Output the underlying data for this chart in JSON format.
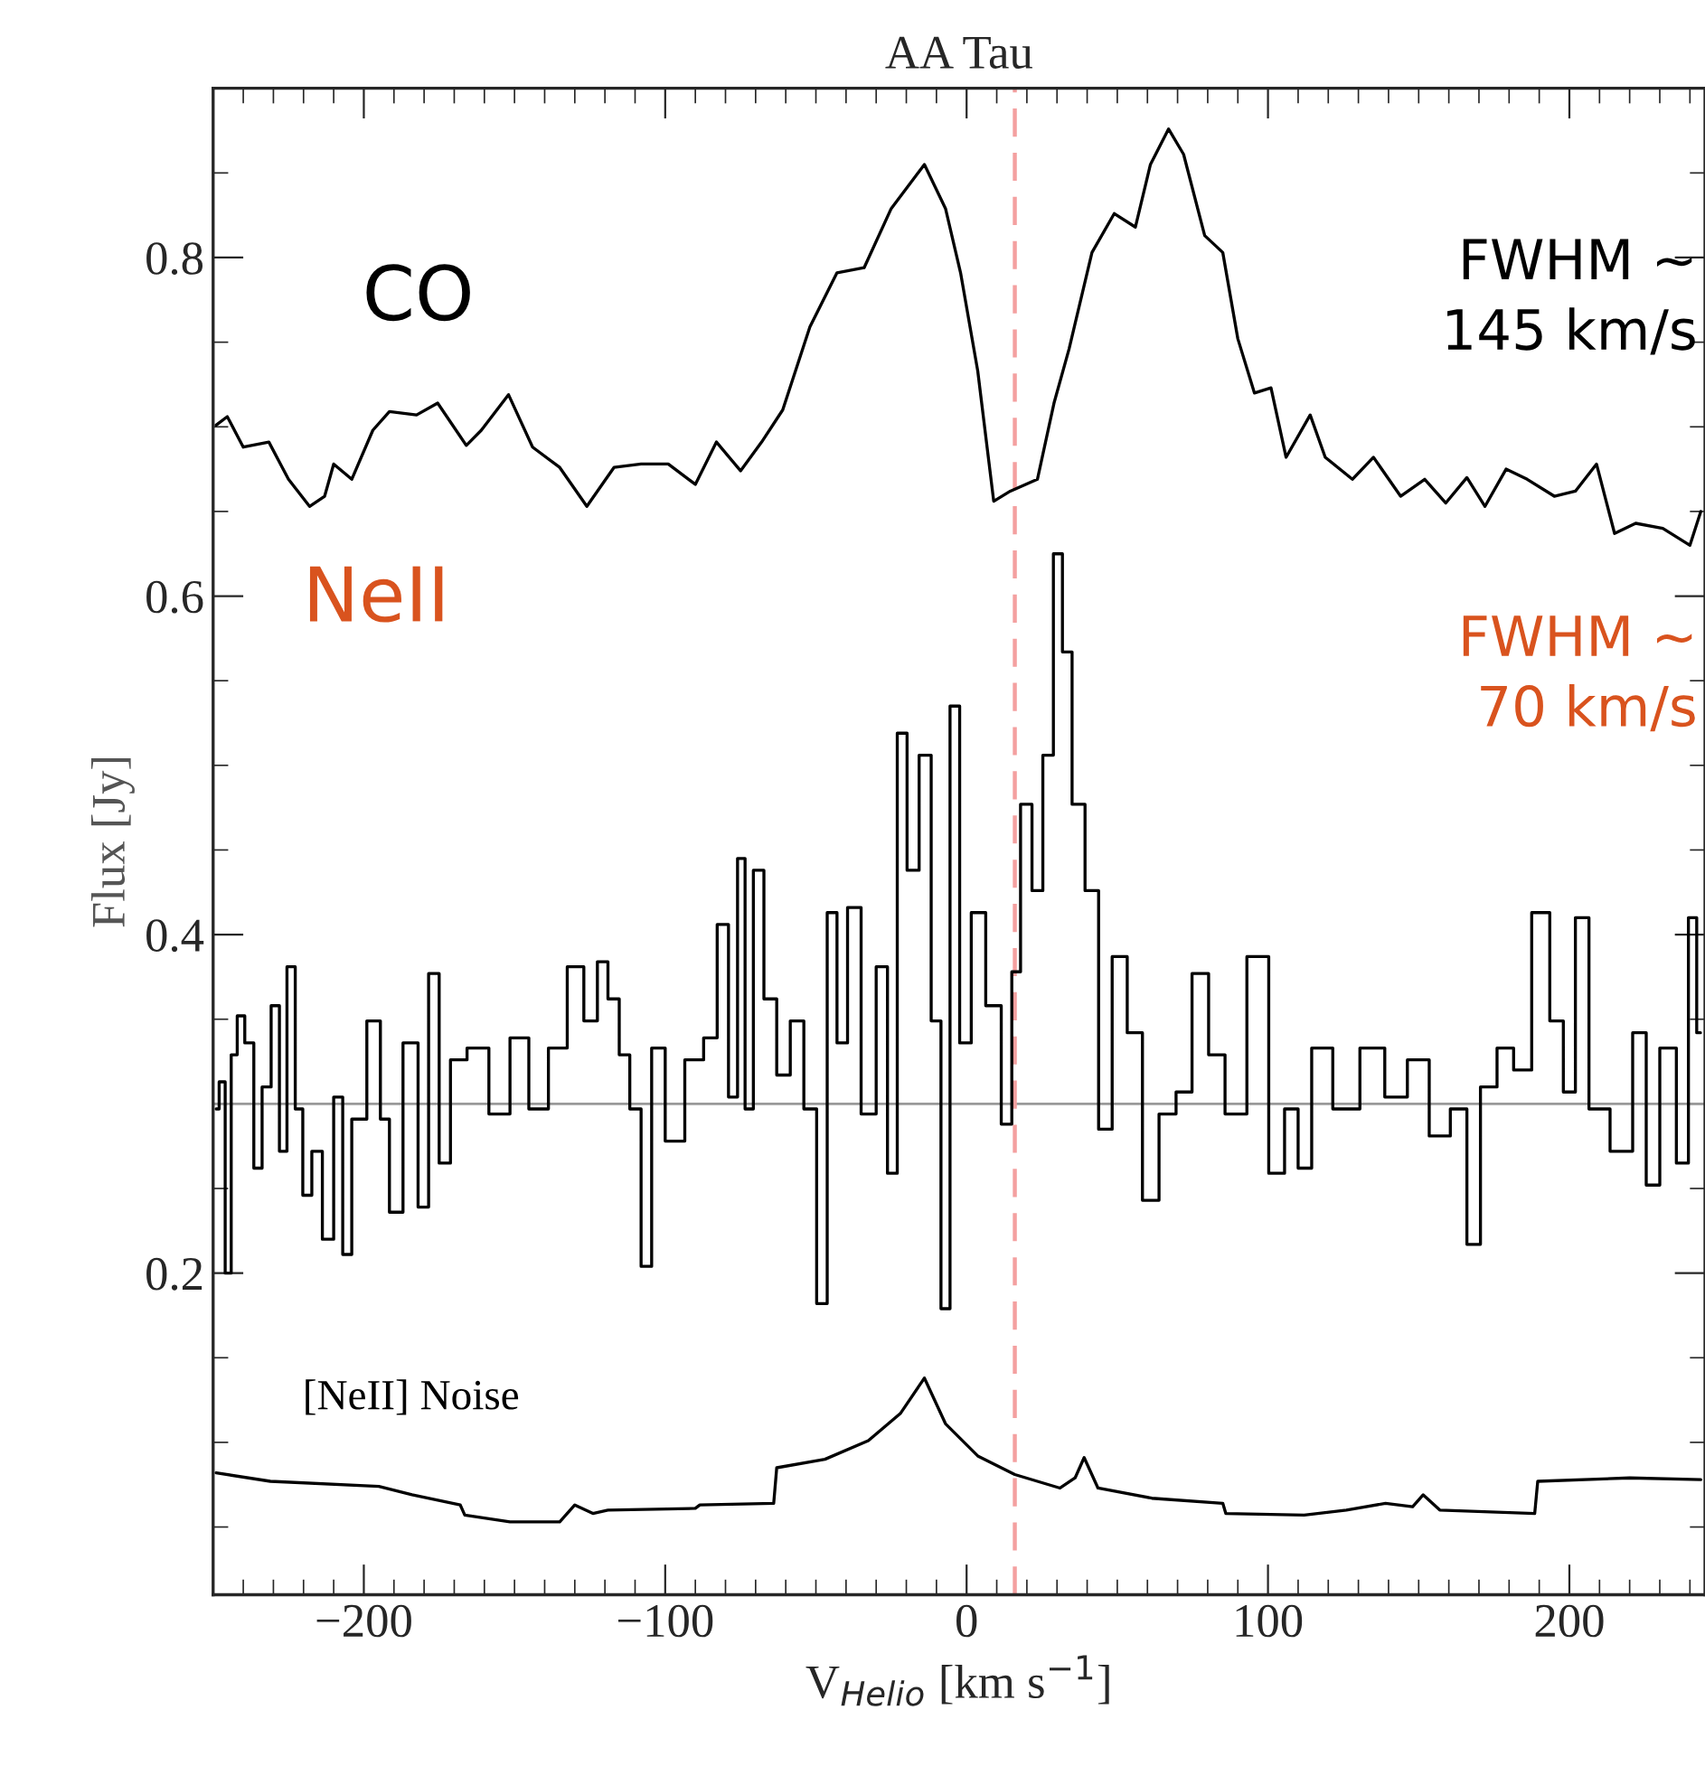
{
  "chart_data": {
    "type": "line",
    "title": "AA Tau",
    "xlabel": "V$_{Helio}$ [km s$^{−1}$]",
    "ylabel": "Flux [Jy]",
    "xlim": [
      -250,
      245
    ],
    "ylim": [
      0.01,
      0.9
    ],
    "xticks": [
      -200,
      -100,
      0,
      100,
      200
    ],
    "yticks": [
      0.2,
      0.4,
      0.6,
      0.8
    ],
    "grid": false,
    "annotations": [
      "FWHM ~\n145 km/s",
      "FWHM ~\n70 km/s"
    ],
    "ref_lines": [
      {
        "axis": "y",
        "value": 0.3,
        "color": "#999999",
        "line_style": "solid"
      },
      {
        "axis": "x",
        "value": 16,
        "color": "#f4a0a0",
        "line_style": "dashed"
      }
    ],
    "series": [
      {
        "name": "CO",
        "type": "line",
        "color": "#000000",
        "x": [
          -249,
          -245.3,
          -240,
          -231.5,
          -225,
          -218,
          -213,
          -210,
          -204,
          -197,
          -191.5,
          -182.5,
          -175.5,
          -166,
          -161,
          -152,
          -144,
          -135,
          -126,
          -117,
          -108,
          -99,
          -90,
          -83,
          -75,
          -68,
          -61,
          -52,
          -43,
          -34,
          -25,
          -14,
          -7,
          -2,
          3.7,
          9,
          14.5,
          23.5,
          29,
          34,
          41.6,
          49,
          56,
          61,
          67,
          72,
          79,
          85,
          90,
          95.5,
          101,
          106,
          114,
          119,
          128,
          135,
          144,
          152,
          159,
          166,
          172,
          179,
          186,
          195,
          202,
          209,
          215,
          222,
          231,
          240,
          243.6
        ],
        "values": [
          0.701,
          0.706,
          0.688,
          0.691,
          0.669,
          0.653,
          0.659,
          0.678,
          0.669,
          0.698,
          0.709,
          0.707,
          0.714,
          0.689,
          0.698,
          0.719,
          0.688,
          0.676,
          0.653,
          0.676,
          0.678,
          0.678,
          0.666,
          0.691,
          0.674,
          0.691,
          0.71,
          0.759,
          0.791,
          0.794,
          0.829,
          0.855,
          0.829,
          0.791,
          0.733,
          0.656,
          0.662,
          0.669,
          0.714,
          0.746,
          0.803,
          0.826,
          0.818,
          0.855,
          0.876,
          0.861,
          0.813,
          0.803,
          0.752,
          0.72,
          0.723,
          0.682,
          0.707,
          0.682,
          0.669,
          0.682,
          0.659,
          0.669,
          0.655,
          0.67,
          0.653,
          0.675,
          0.669,
          0.659,
          0.662,
          0.678,
          0.637,
          0.643,
          0.64,
          0.63,
          0.65
        ]
      },
      {
        "name": "NeII",
        "type": "step",
        "color": "#000000",
        "x": [
          -249,
          -247,
          -245,
          -243,
          -241,
          -238,
          -235,
          -232.5,
          -229,
          -227,
          -224,
          -221.5,
          -219,
          -215.5,
          -212,
          -208,
          -206,
          -202,
          -196,
          -193,
          -190,
          -184,
          -180,
          -177,
          -173,
          -169.5,
          -162,
          -155,
          -148,
          -142.5,
          -135,
          -130,
          -124,
          -121,
          -117,
          -113.5,
          -110,
          -106,
          -103,
          -97,
          -90,
          -84.5,
          -81,
          -77,
          -75,
          -72,
          -69.5,
          -65,
          -61,
          -56,
          -52,
          -47.5,
          -45,
          -41,
          -38,
          -32,
          -28,
          -24.5,
          -21.5,
          -18,
          -13.5,
          -10,
          -7,
          -4,
          -0.6,
          3.7,
          9,
          14,
          16,
          19.8,
          23.6,
          27,
          30.6,
          33,
          37,
          41.6,
          46,
          50.6,
          56,
          60.7,
          67,
          72,
          77.6,
          83,
          88.5,
          97.5,
          103,
          108,
          112,
          117,
          126,
          135,
          142.5,
          150,
          157,
          164,
          168,
          173,
          179,
          184,
          191,
          196,
          200,
          204,
          209,
          218,
          224,
          227,
          233,
          238,
          241,
          243.5
        ],
        "values": [
          0.297,
          0.313,
          0.2,
          0.329,
          0.352,
          0.336,
          0.262,
          0.31,
          0.358,
          0.272,
          0.381,
          0.297,
          0.246,
          0.272,
          0.22,
          0.304,
          0.211,
          0.291,
          0.349,
          0.291,
          0.236,
          0.336,
          0.239,
          0.377,
          0.265,
          0.326,
          0.333,
          0.294,
          0.339,
          0.297,
          0.333,
          0.381,
          0.349,
          0.384,
          0.362,
          0.329,
          0.297,
          0.204,
          0.333,
          0.278,
          0.326,
          0.339,
          0.406,
          0.304,
          0.445,
          0.297,
          0.438,
          0.362,
          0.317,
          0.349,
          0.297,
          0.182,
          0.413,
          0.336,
          0.416,
          0.294,
          0.381,
          0.259,
          0.519,
          0.438,
          0.506,
          0.349,
          0.179,
          0.535,
          0.336,
          0.413,
          0.358,
          0.288,
          0.378,
          0.477,
          0.426,
          0.506,
          0.625,
          0.567,
          0.477,
          0.426,
          0.285,
          0.387,
          0.342,
          0.243,
          0.294,
          0.307,
          0.377,
          0.329,
          0.294,
          0.387,
          0.259,
          0.297,
          0.262,
          0.333,
          0.297,
          0.333,
          0.304,
          0.326,
          0.281,
          0.297,
          0.217,
          0.31,
          0.333,
          0.32,
          0.413,
          0.349,
          0.307,
          0.41,
          0.297,
          0.272,
          0.342,
          0.252,
          0.333,
          0.265,
          0.41,
          0.342
        ]
      },
      {
        "name": "[NeII] Noise",
        "type": "line",
        "color": "#000000",
        "x": [
          -249,
          -231,
          -195,
          -184,
          -168,
          -166.5,
          -151.5,
          -135,
          -130,
          -124,
          -119,
          -90,
          -88.5,
          -64,
          -63,
          -47,
          -32.6,
          -22,
          -14,
          -7,
          3.7,
          16,
          31,
          36,
          39,
          43.6,
          61.5,
          85,
          86,
          112,
          126,
          139,
          148,
          151.5,
          157,
          188.5,
          189.5,
          220,
          243.6
        ],
        "values": [
          0.082,
          0.077,
          0.074,
          0.069,
          0.063,
          0.057,
          0.053,
          0.053,
          0.063,
          0.058,
          0.06,
          0.061,
          0.063,
          0.064,
          0.085,
          0.09,
          0.101,
          0.117,
          0.138,
          0.111,
          0.092,
          0.081,
          0.073,
          0.079,
          0.091,
          0.073,
          0.067,
          0.064,
          0.058,
          0.057,
          0.06,
          0.064,
          0.062,
          0.069,
          0.06,
          0.058,
          0.077,
          0.079,
          0.078
        ]
      }
    ]
  }
}
